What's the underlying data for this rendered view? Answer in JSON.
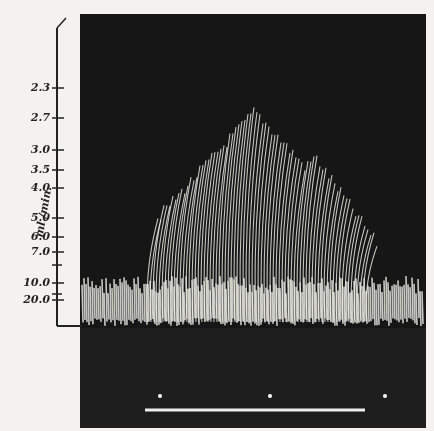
{
  "axis": {
    "label": "ml./min.",
    "ticks": [
      "2.3",
      "2.7",
      "3.0",
      "3.5",
      "4.0",
      "5.0",
      "6.0",
      "7.0",
      "10.0",
      "20.0"
    ]
  }
}
